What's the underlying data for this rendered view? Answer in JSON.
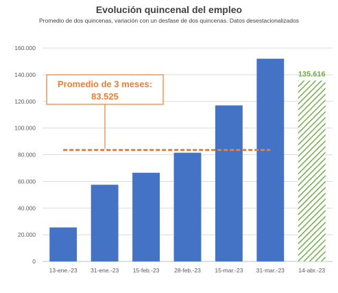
{
  "chart_data": {
    "type": "bar",
    "title": "Evolución quincenal del empleo",
    "subtitle": "Promedio de dos quincenas, variación con un desfase de dos quincenas. Datos desestacionalizados",
    "categories": [
      "13-ene.-23",
      "31-ene.-23",
      "15-feb.-23",
      "28-feb.-23",
      "15-mar.-23",
      "31-mar.-23",
      "14-abr.-23"
    ],
    "values": [
      25500,
      57500,
      66500,
      81500,
      117000,
      152000,
      135616
    ],
    "bar_styles": [
      "solid",
      "solid",
      "solid",
      "solid",
      "solid",
      "solid",
      "hatched"
    ],
    "highlight_label": "135.616",
    "ylim": [
      0,
      160000
    ],
    "ytick_values": [
      0,
      20000,
      40000,
      60000,
      80000,
      100000,
      120000,
      140000,
      160000
    ],
    "ytick_labels": [
      "0",
      "20.000",
      "40.000",
      "60.000",
      "80.000",
      "100.000",
      "120.000",
      "140.000",
      "160.000"
    ],
    "grid": true,
    "reference_line": {
      "value": 83525,
      "label_line1": "Promedio de 3 meses:",
      "label_line2": "83.525"
    },
    "colors": {
      "bar": "#4472c4",
      "hatch": "#70ad47",
      "highlight_label": "#70ad47",
      "reference": "#ed7d31"
    }
  }
}
